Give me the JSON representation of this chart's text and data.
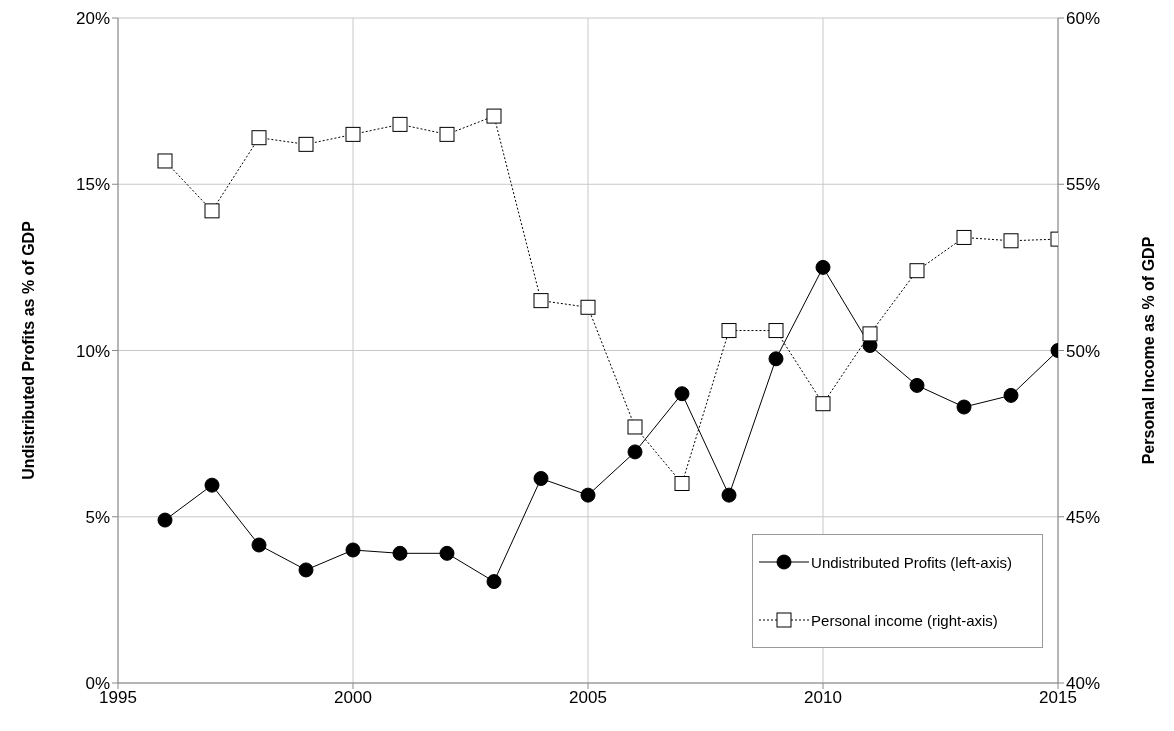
{
  "chart_data": {
    "type": "line",
    "ylabel": "Undistributed Profits as % of GDP",
    "y2label": "Personal Income as % of GDP",
    "x": [
      1996,
      1997,
      1998,
      1999,
      2000,
      2001,
      2002,
      2003,
      2004,
      2005,
      2006,
      2007,
      2008,
      2009,
      2010,
      2011,
      2012,
      2013,
      2014,
      2015
    ],
    "series": [
      {
        "name": "Undistributed Profits (left-axis)",
        "color": "#000000",
        "marker": "circle",
        "line_style": "solid",
        "values": [
          4.9,
          5.95,
          4.15,
          3.4,
          4.0,
          3.9,
          3.9,
          3.05,
          6.15,
          5.65,
          6.95,
          8.7,
          5.65,
          9.75,
          12.5,
          10.15,
          8.95,
          8.3,
          8.65,
          10.0
        ]
      },
      {
        "name": "Personal income (right-axis)",
        "color": "#000000",
        "marker": "square",
        "line_style": "dotted",
        "axis": "y2",
        "values": [
          55.7,
          54.2,
          56.4,
          56.2,
          56.5,
          56.8,
          56.5,
          57.05,
          51.5,
          51.3,
          47.7,
          46.0,
          50.6,
          50.6,
          48.4,
          50.5,
          52.4,
          53.4,
          53.3,
          53.35
        ]
      }
    ],
    "xlim": [
      1995,
      2015
    ],
    "xticks": [
      1995,
      2000,
      2005,
      2010,
      2015
    ],
    "ylim": [
      0,
      20
    ],
    "yticks": [
      {
        "value": 0,
        "label": "0%"
      },
      {
        "value": 5,
        "label": "5%"
      },
      {
        "value": 10,
        "label": "10%"
      },
      {
        "value": 15,
        "label": "15%"
      },
      {
        "value": 20,
        "label": "20%"
      }
    ],
    "y2lim": [
      40,
      60
    ],
    "y2ticks": [
      {
        "value": 40,
        "label": "40%"
      },
      {
        "value": 45,
        "label": "45%"
      },
      {
        "value": 50,
        "label": "50%"
      },
      {
        "value": 55,
        "label": "55%"
      },
      {
        "value": 60,
        "label": "60%"
      }
    ],
    "grid": true,
    "legend": "bottom right"
  }
}
